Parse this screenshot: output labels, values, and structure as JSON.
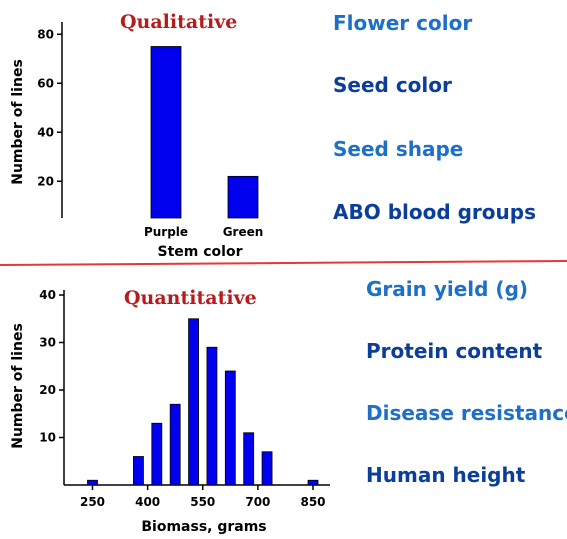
{
  "colors": {
    "bar": "#0000ee",
    "heading": "#b71c1c",
    "trait_light": "#1e6fc8",
    "trait_dark": "#0b3e9a",
    "divider": "#e53935"
  },
  "qualitative_traits": [
    "Flower color",
    "Seed color",
    "Seed shape",
    "ABO blood groups"
  ],
  "quantitative_traits": [
    "Grain yield (g)",
    "Protein content",
    "Disease resistance",
    "Human height"
  ],
  "chart_data": [
    {
      "type": "bar",
      "title": "Qualitative",
      "xlabel": "Stem color",
      "ylabel": "Number of lines",
      "categories": [
        "Purple",
        "Green"
      ],
      "values": [
        75,
        22
      ],
      "ylim": [
        5,
        85
      ],
      "yticks": [
        20,
        40,
        60,
        80
      ],
      "grid": false
    },
    {
      "type": "bar",
      "title": "Quantitative",
      "xlabel": "Biomass, grams",
      "ylabel": "Number of lines",
      "x": [
        250,
        350,
        375,
        425,
        475,
        525,
        575,
        625,
        675,
        725,
        775,
        850
      ],
      "values": [
        1,
        0,
        6,
        13,
        17,
        35,
        29,
        24,
        11,
        7,
        0,
        1
      ],
      "xticks": [
        250,
        400,
        550,
        700,
        850
      ],
      "yticks": [
        10,
        20,
        30,
        40
      ],
      "ylim": [
        0,
        40
      ],
      "xlim": [
        170,
        880
      ],
      "grid": false
    }
  ]
}
